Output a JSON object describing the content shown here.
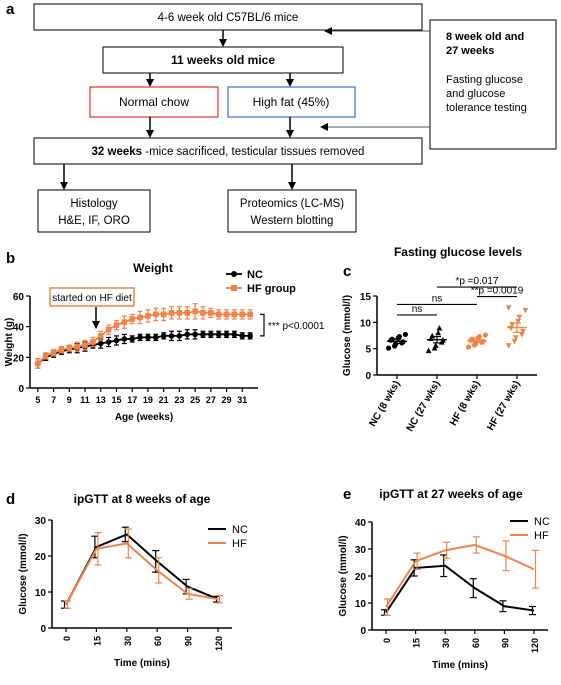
{
  "panel_labels": {
    "a": "a",
    "b": "b",
    "c": "c",
    "d": "d",
    "e": "e"
  },
  "flowchart": {
    "box_mice": "4-6 week old C57BL/6 mice",
    "box_11wk": "11 weeks old mice",
    "box_nc": "Normal chow",
    "box_hf": "High fat (45%)",
    "box_32wk_bold": "32 weeks",
    "box_32wk_rest": " -mice sacrificed, testicular tissues removed",
    "box_hist_line1": "Histology",
    "box_hist_line2": "H&E, IF, ORO",
    "box_prot_line1": "Proteomics (LC-MS)",
    "box_prot_line2": "Western blotting",
    "box_side_line1": "8 week old and",
    "box_side_line2": "27 weeks",
    "box_side_line3": "Fasting glucose",
    "box_side_line4": "and glucose",
    "box_side_line5": "tolerance testing",
    "colors": {
      "normal_chow_border": "#e03030",
      "high_fat_border": "#3a6fd8"
    }
  },
  "chart_data": [
    {
      "id": "b",
      "type": "line",
      "title": "Weight",
      "xlabel": "Age (weeks)",
      "ylabel": "Weight (g)",
      "ylim": [
        0,
        60
      ],
      "yticks": [
        0,
        20,
        40,
        60
      ],
      "x": [
        5,
        6,
        7,
        8,
        9,
        10,
        11,
        12,
        13,
        14,
        15,
        16,
        17,
        18,
        19,
        20,
        21,
        22,
        23,
        24,
        25,
        26,
        27,
        28,
        29,
        30,
        31,
        32
      ],
      "xtick_labels": [
        "5",
        "7",
        "9",
        "11",
        "13",
        "15",
        "17",
        "19",
        "21",
        "23",
        "25",
        "27",
        "29",
        "31"
      ],
      "series": [
        {
          "name": "NC",
          "color": "#000000",
          "marker": "circle",
          "values": [
            16,
            20,
            22,
            24,
            25,
            26,
            27,
            28,
            29,
            30,
            31,
            32,
            32,
            33,
            33,
            33,
            34,
            34,
            34,
            35,
            35,
            35,
            35,
            35,
            35,
            35,
            34,
            34
          ],
          "error": [
            3,
            2,
            2,
            2,
            2,
            3,
            3,
            2,
            3,
            3,
            3,
            3,
            2,
            2,
            2,
            2,
            2,
            3,
            3,
            3,
            3,
            2,
            2,
            2,
            2,
            2,
            2,
            2
          ]
        },
        {
          "name": "HF group",
          "color": "#f0824a",
          "marker": "square",
          "values": [
            16,
            21,
            23,
            25,
            26,
            27,
            28,
            30,
            34,
            38,
            41,
            43,
            45,
            46,
            47,
            48,
            48,
            49,
            49,
            49,
            50,
            49,
            49,
            48,
            48,
            48,
            48,
            48
          ],
          "error": [
            3,
            2,
            2,
            2,
            2,
            3,
            3,
            3,
            3,
            3,
            3,
            4,
            3,
            4,
            4,
            4,
            4,
            4,
            4,
            4,
            5,
            4,
            3,
            3,
            3,
            3,
            3,
            3
          ]
        }
      ],
      "annotations": {
        "hf_start": "started on HF diet",
        "significance": "*** p<0.0001"
      },
      "legend": "top-right"
    },
    {
      "id": "c",
      "type": "scatter",
      "title": "Fasting glucose levels",
      "ylabel": "Glucose (mmol/l)",
      "ylim": [
        0,
        15
      ],
      "yticks": [
        0,
        5,
        10,
        15
      ],
      "categories": [
        "NC (8 wks)",
        "NC (27 wks)",
        "HF (8 wks)",
        "HF (27 wks)"
      ],
      "groups": [
        {
          "name": "NC (8 wks)",
          "color": "#000000",
          "marker": "circle",
          "mean": 6.4,
          "sem": 0.4,
          "points": [
            5.1,
            5.5,
            5.9,
            6.1,
            6.3,
            6.6,
            6.8,
            7.0,
            7.3,
            7.7
          ]
        },
        {
          "name": "NC (27 wks)",
          "color": "#000000",
          "marker": "triangle",
          "mean": 6.7,
          "sem": 0.6,
          "points": [
            4.6,
            5.1,
            5.6,
            6.2,
            6.6,
            6.9,
            7.4,
            8.0,
            8.9
          ]
        },
        {
          "name": "HF (8 wks)",
          "color": "#f0824a",
          "marker": "circle",
          "mean": 6.5,
          "sem": 0.3,
          "points": [
            5.3,
            5.7,
            6.0,
            6.2,
            6.4,
            6.6,
            6.8,
            7.0,
            7.3,
            7.6
          ]
        },
        {
          "name": "HF (27 wks)",
          "color": "#f0824a",
          "marker": "triangle-down",
          "mean": 9.0,
          "sem": 0.9,
          "points": [
            5.6,
            6.4,
            7.1,
            7.7,
            8.3,
            8.9,
            9.6,
            10.2,
            11.0,
            12.3,
            12.8
          ]
        }
      ],
      "comparisons": [
        {
          "label": "ns"
        },
        {
          "label": "ns"
        },
        {
          "label": "*p =0.017"
        },
        {
          "label": "**p =0.0019"
        }
      ]
    },
    {
      "id": "d",
      "type": "line",
      "title": "ipGTT at 8 weeks of age",
      "xlabel": "Time (mins)",
      "ylabel": "Glucose (mmol/l)",
      "ylim": [
        0,
        30
      ],
      "yticks": [
        0,
        10,
        20,
        30
      ],
      "categories": [
        "0",
        "15",
        "30",
        "60",
        "90",
        "120"
      ],
      "series": [
        {
          "name": "NC",
          "color": "#000000",
          "values": [
            6.5,
            22.5,
            26.0,
            18.5,
            11.5,
            8.0
          ],
          "error": [
            1.0,
            3.0,
            2.0,
            3.0,
            2.0,
            0.8
          ]
        },
        {
          "name": "HF",
          "color": "#f0824a",
          "values": [
            6.5,
            22.0,
            23.5,
            16.0,
            9.5,
            8.0
          ],
          "error": [
            1.0,
            4.5,
            4.0,
            3.5,
            1.5,
            1.0
          ]
        }
      ],
      "legend": "top-right"
    },
    {
      "id": "e",
      "type": "line",
      "title": "ipGTT at 27 weeks of age",
      "xlabel": "Time (mins)",
      "ylabel": "Glucose (mmol/l)",
      "ylim": [
        0,
        40
      ],
      "yticks": [
        0,
        10,
        20,
        30,
        40
      ],
      "categories": [
        "0",
        "15",
        "30",
        "60",
        "90",
        "120"
      ],
      "series": [
        {
          "name": "NC",
          "color": "#000000",
          "values": [
            6.5,
            23.0,
            23.8,
            15.5,
            8.8,
            7.2
          ],
          "error": [
            1.0,
            3.0,
            4.0,
            3.5,
            2.0,
            1.5
          ]
        },
        {
          "name": "HF",
          "color": "#f0824a",
          "values": [
            8.5,
            25.5,
            29.5,
            31.5,
            27.5,
            22.5
          ],
          "error": [
            3.0,
            3.0,
            3.0,
            3.0,
            5.5,
            7.0
          ]
        }
      ],
      "legend": "top-right"
    }
  ]
}
